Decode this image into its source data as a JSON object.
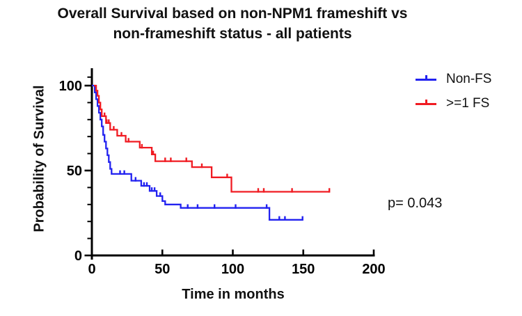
{
  "chart_data": {
    "type": "line",
    "subtype": "kaplan-meier-step",
    "title": "Overall Survival based on non-NPM1 frameshift vs non-frameshift status - all patients",
    "title_lines": [
      "Overall Survival based on non-NPM1 frameshift vs",
      "non-frameshift status - all patients"
    ],
    "xlabel": "Time in months",
    "ylabel": "Probability of Survival",
    "annotation": "p= 0.043",
    "xlim": [
      0,
      200
    ],
    "ylim": [
      0,
      100
    ],
    "xticks": [
      0,
      50,
      100,
      150,
      200
    ],
    "yticks": [
      0,
      50,
      100
    ],
    "y_minor_ticks": [
      10,
      20,
      30,
      40,
      60,
      70,
      80,
      90,
      105
    ],
    "grid": false,
    "legend_position": "right-top",
    "axis_color": "#000000",
    "series": [
      {
        "name": "Non-FS",
        "key": "non-fs",
        "color": "#2222f0",
        "x_start": 0,
        "x_end": 149.5,
        "end_tick": true,
        "steps": [
          [
            2,
            96
          ],
          [
            3,
            92
          ],
          [
            4,
            88
          ],
          [
            5,
            84
          ],
          [
            6,
            80
          ],
          [
            7,
            76
          ],
          [
            8,
            71
          ],
          [
            9,
            67
          ],
          [
            10,
            63
          ],
          [
            11,
            59
          ],
          [
            12,
            55
          ],
          [
            13,
            51
          ],
          [
            14,
            48
          ],
          [
            28,
            44
          ],
          [
            35,
            41
          ],
          [
            41,
            38
          ],
          [
            46,
            35
          ],
          [
            50,
            32
          ],
          [
            52,
            30
          ],
          [
            63,
            28
          ],
          [
            126,
            21
          ]
        ],
        "censors": [
          20,
          23,
          31,
          37,
          39,
          42.5,
          44.5,
          48.5,
          68,
          75,
          87,
          102,
          124,
          133,
          137
        ]
      },
      {
        "name": ">=1 FS",
        "key": "ge1-fs",
        "color": "#f01b22",
        "x_start": 1.5,
        "x_end": 168.5,
        "end_tick": true,
        "steps": [
          [
            3,
            97
          ],
          [
            4,
            94
          ],
          [
            5,
            90
          ],
          [
            6,
            86
          ],
          [
            7,
            82
          ],
          [
            10,
            78
          ],
          [
            13,
            74
          ],
          [
            18,
            70.5
          ],
          [
            24,
            67
          ],
          [
            34,
            63.5
          ],
          [
            42.5,
            59.5
          ],
          [
            45,
            55.5
          ],
          [
            71,
            52
          ],
          [
            85,
            46
          ],
          [
            99,
            37.5
          ]
        ],
        "censors": [
          9,
          10.5,
          12,
          15.5,
          21,
          26,
          35.5,
          43.5,
          52,
          56,
          67,
          78,
          96,
          118,
          122,
          142
        ]
      }
    ]
  }
}
